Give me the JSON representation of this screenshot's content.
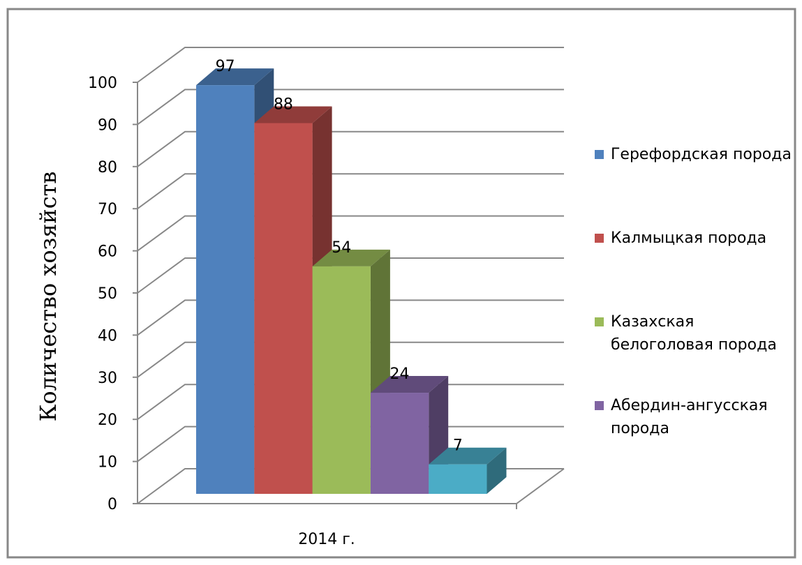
{
  "chart_data": {
    "type": "bar3d",
    "y_label": "Количество хозяйств",
    "categories": [
      "2014 г."
    ],
    "series": [
      {
        "name": "Герефордская порода",
        "color": "#4f81bd",
        "values": [
          97
        ]
      },
      {
        "name": "Калмыцкая порода",
        "color": "#c0504d",
        "values": [
          88
        ]
      },
      {
        "name": "Казахская белоголовая порода",
        "color": "#9bbb59",
        "values": [
          54
        ]
      },
      {
        "name": "Абердин-ангусская порода",
        "color": "#8064a2",
        "values": [
          24
        ]
      },
      {
        "name": "Абердин-ангусская порода",
        "color": "#4bacc6",
        "values": [
          7
        ]
      }
    ],
    "ylim": [
      0,
      100
    ],
    "yticks": [
      0,
      10,
      20,
      30,
      40,
      50,
      60,
      70,
      80,
      90,
      100
    ],
    "grid": true,
    "legend": "right"
  }
}
